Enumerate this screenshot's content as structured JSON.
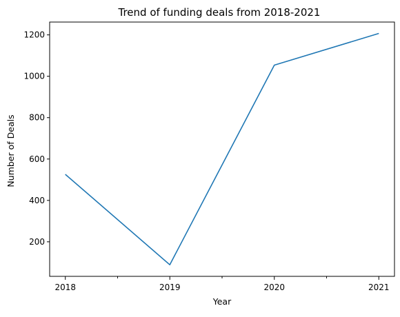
{
  "chart_data": {
    "type": "line",
    "title": "Trend of funding deals from 2018-2021",
    "xlabel": "Year",
    "ylabel": "Number of Deals",
    "x": [
      2018,
      2019,
      2020,
      2021
    ],
    "x_tick_labels": [
      "2018",
      "2019",
      "2020",
      "2021"
    ],
    "y_ticks": [
      200,
      400,
      600,
      800,
      1000,
      1200
    ],
    "y_tick_labels": [
      "200",
      "400",
      "600",
      "800",
      "1000",
      "1200"
    ],
    "xlim": [
      2017.85,
      2021.15
    ],
    "ylim": [
      33,
      1262
    ],
    "grid": false,
    "series": [
      {
        "values": [
          526,
          89,
          1054,
          1207
        ],
        "color": "#1f77b4"
      }
    ]
  }
}
